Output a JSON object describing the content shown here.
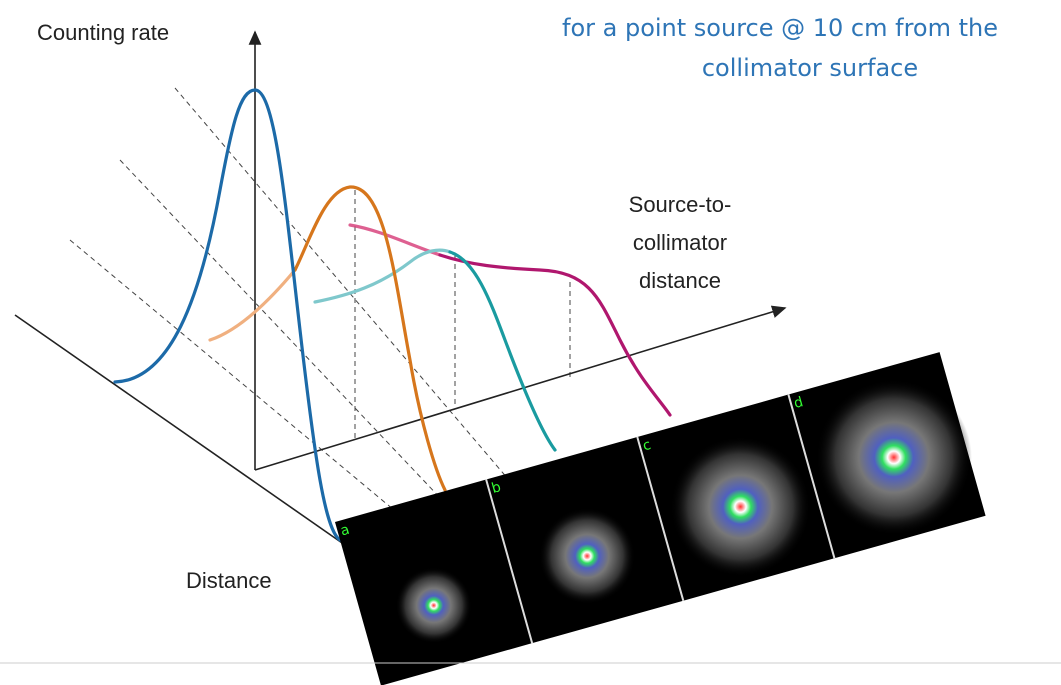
{
  "title": {
    "lines": [
      "for a point source @ 10 cm from the",
      "collimator surface"
    ]
  },
  "axes": {
    "y_label": "Counting rate",
    "depth_label": [
      "Source-to-",
      "collimator",
      "distance"
    ],
    "x_label": "Distance"
  },
  "panels": [
    {
      "label": "a"
    },
    {
      "label": "b"
    },
    {
      "label": "c"
    },
    {
      "label": "d"
    }
  ]
}
